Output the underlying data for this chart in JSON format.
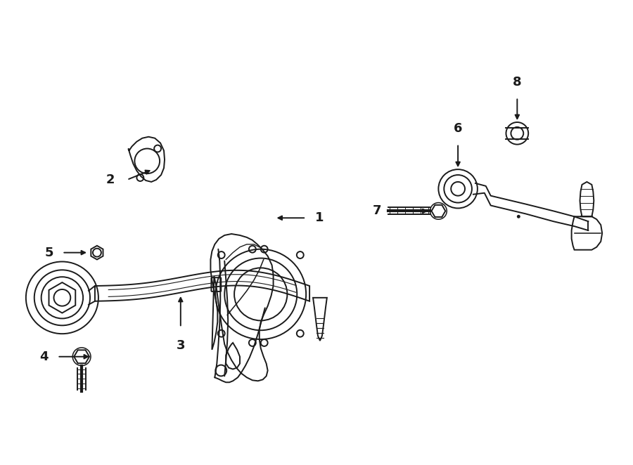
{
  "bg_color": "#ffffff",
  "line_color": "#1a1a1a",
  "figsize": [
    9.0,
    6.62
  ],
  "dpi": 100
}
